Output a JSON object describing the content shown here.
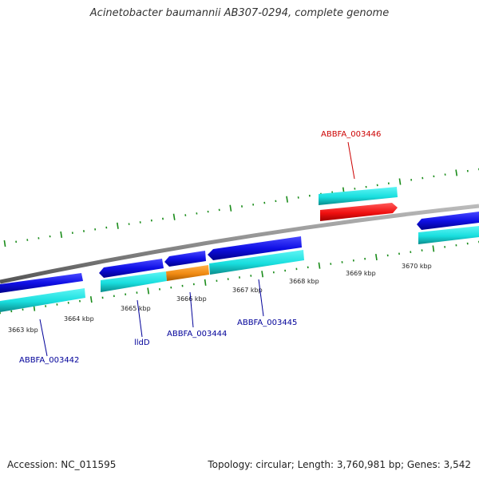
{
  "title": "Acinetobacter baumannii AB307-0294, complete genome",
  "footer": {
    "accession": "Accession: NC_011595",
    "summary": "Topology: circular; Length: 3,760,981 bp; Genes: 3,542"
  },
  "ticks": [
    "3663 kbp",
    "3664 kbp",
    "3665 kbp",
    "3666 kbp",
    "3667 kbp",
    "3668 kbp",
    "3669 kbp",
    "3670 kbp"
  ],
  "gene_labels": [
    {
      "id": "g1",
      "text": "ABBFA_003442",
      "color": "#000099"
    },
    {
      "id": "g2",
      "text": "lldD",
      "color": "#000099"
    },
    {
      "id": "g3",
      "text": "ABBFA_003444",
      "color": "#000099"
    },
    {
      "id": "g4",
      "text": "ABBFA_003445",
      "color": "#000099"
    },
    {
      "id": "g5",
      "text": "ABBFA_003446",
      "color": "#cc0000"
    }
  ],
  "colors": {
    "backbone": "#8c8c8c",
    "cds": "#1a1ae6",
    "gene_strip": "#19e6e6",
    "pseudo": "#f28c1a",
    "highlight": "#ff1a1a",
    "ticks": "#1a8c1a"
  }
}
